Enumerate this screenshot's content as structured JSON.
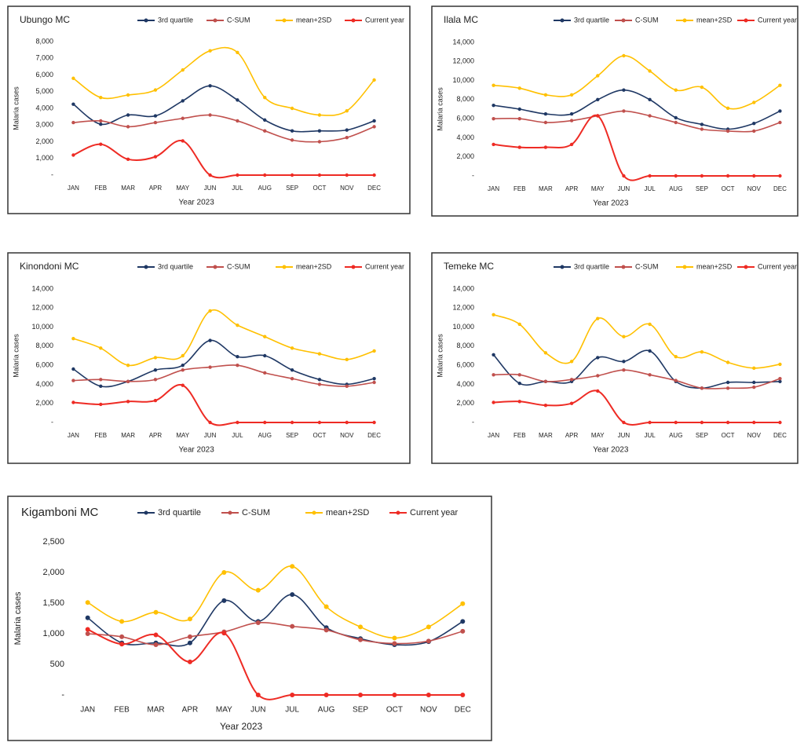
{
  "chart_data": [
    {
      "type": "line",
      "title": "Ubungo MC",
      "xlabel": "Year 2023",
      "ylabel": "Malaria cases",
      "categories": [
        "JAN",
        "FEB",
        "MAR",
        "APR",
        "MAY",
        "JUN",
        "JUL",
        "AUG",
        "SEP",
        "OCT",
        "NOV",
        "DEC"
      ],
      "ylim": [
        0,
        8000
      ],
      "yticks": [
        {
          "value": 0,
          "label": "-"
        },
        {
          "value": 1000,
          "label": "1,000"
        },
        {
          "value": 2000,
          "label": "2,000"
        },
        {
          "value": 3000,
          "label": "3,000"
        },
        {
          "value": 4000,
          "label": "4,000"
        },
        {
          "value": 5000,
          "label": "5,000"
        },
        {
          "value": 6000,
          "label": "6,000"
        },
        {
          "value": 7000,
          "label": "7,000"
        },
        {
          "value": 8000,
          "label": "8,000"
        }
      ],
      "series": [
        {
          "name": "3rd quartile",
          "color": "#1f3864",
          "values": [
            4250,
            3050,
            3600,
            3550,
            4450,
            5350,
            4500,
            3300,
            2650,
            2650,
            2700,
            3250
          ]
        },
        {
          "name": "C-SUM",
          "color": "#c0504d",
          "values": [
            3150,
            3250,
            2900,
            3150,
            3400,
            3600,
            3250,
            2650,
            2100,
            2000,
            2250,
            2900
          ]
        },
        {
          "name": "mean+2SD",
          "color": "#ffc000",
          "values": [
            5800,
            4650,
            4800,
            5100,
            6300,
            7450,
            7350,
            4650,
            4000,
            3600,
            3850,
            5700
          ]
        },
        {
          "name": "Current year",
          "color": "#ee2b24",
          "values": [
            1200,
            1850,
            950,
            1100,
            2050,
            0,
            0,
            0,
            0,
            0,
            0,
            0
          ]
        }
      ]
    },
    {
      "type": "line",
      "title": "Ilala MC",
      "xlabel": "Year 2023",
      "ylabel": "Malaria cases",
      "categories": [
        "JAN",
        "FEB",
        "MAR",
        "APR",
        "MAY",
        "JUN",
        "JUL",
        "AUG",
        "SEP",
        "OCT",
        "NOV",
        "DEC"
      ],
      "ylim": [
        0,
        14000
      ],
      "yticks": [
        {
          "value": 0,
          "label": "-"
        },
        {
          "value": 2000,
          "label": "2,000"
        },
        {
          "value": 4000,
          "label": "4,000"
        },
        {
          "value": 6000,
          "label": "6,000"
        },
        {
          "value": 8000,
          "label": "8,000"
        },
        {
          "value": 10000,
          "label": "10,000"
        },
        {
          "value": 12000,
          "label": "12,000"
        },
        {
          "value": 14000,
          "label": "14,000"
        }
      ],
      "series": [
        {
          "name": "3rd quartile",
          "color": "#1f3864",
          "values": [
            7400,
            7000,
            6500,
            6500,
            8000,
            9000,
            8000,
            6100,
            5400,
            4900,
            5500,
            6800
          ]
        },
        {
          "name": "C-SUM",
          "color": "#c0504d",
          "values": [
            6000,
            6000,
            5600,
            5800,
            6300,
            6800,
            6300,
            5600,
            4900,
            4700,
            4700,
            5600
          ]
        },
        {
          "name": "mean+2SD",
          "color": "#ffc000",
          "values": [
            9500,
            9200,
            8500,
            8500,
            10500,
            12600,
            11000,
            9000,
            9300,
            7100,
            7700,
            9500
          ]
        },
        {
          "name": "Current year",
          "color": "#ee2b24",
          "values": [
            3300,
            3000,
            3000,
            3300,
            6300,
            0,
            0,
            0,
            0,
            0,
            0,
            0
          ]
        }
      ]
    },
    {
      "type": "line",
      "title": "Kinondoni MC",
      "xlabel": "Year 2023",
      "ylabel": "Malaria cases",
      "categories": [
        "JAN",
        "FEB",
        "MAR",
        "APR",
        "MAY",
        "JUN",
        "JUL",
        "AUG",
        "SEP",
        "OCT",
        "NOV",
        "DEC"
      ],
      "ylim": [
        0,
        14000
      ],
      "yticks": [
        {
          "value": 0,
          "label": "-"
        },
        {
          "value": 2000,
          "label": "2,000"
        },
        {
          "value": 4000,
          "label": "4,000"
        },
        {
          "value": 6000,
          "label": "6,000"
        },
        {
          "value": 8000,
          "label": "8,000"
        },
        {
          "value": 10000,
          "label": "10,000"
        },
        {
          "value": 12000,
          "label": "12,000"
        },
        {
          "value": 14000,
          "label": "14,000"
        }
      ],
      "series": [
        {
          "name": "3rd quartile",
          "color": "#1f3864",
          "values": [
            5600,
            3800,
            4300,
            5500,
            6000,
            8600,
            6900,
            7000,
            5500,
            4500,
            4000,
            4600
          ]
        },
        {
          "name": "C-SUM",
          "color": "#c0504d",
          "values": [
            4400,
            4500,
            4300,
            4500,
            5500,
            5800,
            6000,
            5200,
            4600,
            4000,
            3800,
            4200
          ]
        },
        {
          "name": "mean+2SD",
          "color": "#ffc000",
          "values": [
            8800,
            7800,
            6000,
            6800,
            7000,
            11700,
            10200,
            9000,
            7800,
            7200,
            6600,
            7500
          ]
        },
        {
          "name": "Current year",
          "color": "#ee2b24",
          "values": [
            2100,
            1900,
            2200,
            2300,
            3900,
            0,
            0,
            0,
            0,
            0,
            0,
            0
          ]
        }
      ]
    },
    {
      "type": "line",
      "title": "Temeke MC",
      "xlabel": "Year 2023",
      "ylabel": "Malaria cases",
      "categories": [
        "JAN",
        "FEB",
        "MAR",
        "APR",
        "MAY",
        "JUN",
        "JUL",
        "AUG",
        "SEP",
        "OCT",
        "NOV",
        "DEC"
      ],
      "ylim": [
        0,
        14000
      ],
      "yticks": [
        {
          "value": 0,
          "label": "-"
        },
        {
          "value": 2000,
          "label": "2,000"
        },
        {
          "value": 4000,
          "label": "4,000"
        },
        {
          "value": 6000,
          "label": "6,000"
        },
        {
          "value": 8000,
          "label": "8,000"
        },
        {
          "value": 10000,
          "label": "10,000"
        },
        {
          "value": 12000,
          "label": "12,000"
        },
        {
          "value": 14000,
          "label": "14,000"
        }
      ],
      "series": [
        {
          "name": "3rd quartile",
          "color": "#1f3864",
          "values": [
            7100,
            4100,
            4300,
            4300,
            6800,
            6400,
            7500,
            4300,
            3600,
            4200,
            4200,
            4300
          ]
        },
        {
          "name": "C-SUM",
          "color": "#c0504d",
          "values": [
            5000,
            5000,
            4300,
            4500,
            4900,
            5500,
            5000,
            4400,
            3600,
            3600,
            3700,
            4600
          ]
        },
        {
          "name": "mean+2SD",
          "color": "#ffc000",
          "values": [
            11300,
            10300,
            7300,
            6400,
            10900,
            9000,
            10300,
            6900,
            7400,
            6300,
            5700,
            6100
          ]
        },
        {
          "name": "Current year",
          "color": "#ee2b24",
          "values": [
            2100,
            2200,
            1800,
            2000,
            3300,
            0,
            0,
            0,
            0,
            0,
            0,
            0
          ]
        }
      ]
    },
    {
      "type": "line",
      "title": "Kigamboni MC",
      "xlabel": "Year 2023",
      "ylabel": "Malaria cases",
      "categories": [
        "JAN",
        "FEB",
        "MAR",
        "APR",
        "MAY",
        "JUN",
        "JUL",
        "AUG",
        "SEP",
        "OCT",
        "NOV",
        "DEC"
      ],
      "ylim": [
        0,
        2500
      ],
      "yticks": [
        {
          "value": 0,
          "label": "-"
        },
        500,
        {
          "value": 1000,
          "label": "1,000"
        },
        {
          "value": 1500,
          "label": "1,500"
        },
        {
          "value": 2000,
          "label": "2,000"
        },
        {
          "value": 2500,
          "label": "2,500"
        }
      ],
      "series": [
        {
          "name": "3rd quartile",
          "color": "#1f3864",
          "values": [
            1260,
            850,
            850,
            850,
            1540,
            1200,
            1640,
            1100,
            920,
            820,
            870,
            1200
          ]
        },
        {
          "name": "C-SUM",
          "color": "#c0504d",
          "values": [
            1000,
            950,
            820,
            950,
            1030,
            1180,
            1120,
            1060,
            900,
            840,
            880,
            1040
          ]
        },
        {
          "name": "mean+2SD",
          "color": "#ffc000",
          "values": [
            1510,
            1200,
            1350,
            1240,
            2000,
            1710,
            2100,
            1440,
            1110,
            930,
            1110,
            1490
          ]
        },
        {
          "name": "Current year",
          "color": "#ee2b24",
          "values": [
            1070,
            830,
            980,
            540,
            1010,
            0,
            0,
            0,
            0,
            0,
            0,
            0
          ]
        }
      ]
    }
  ]
}
